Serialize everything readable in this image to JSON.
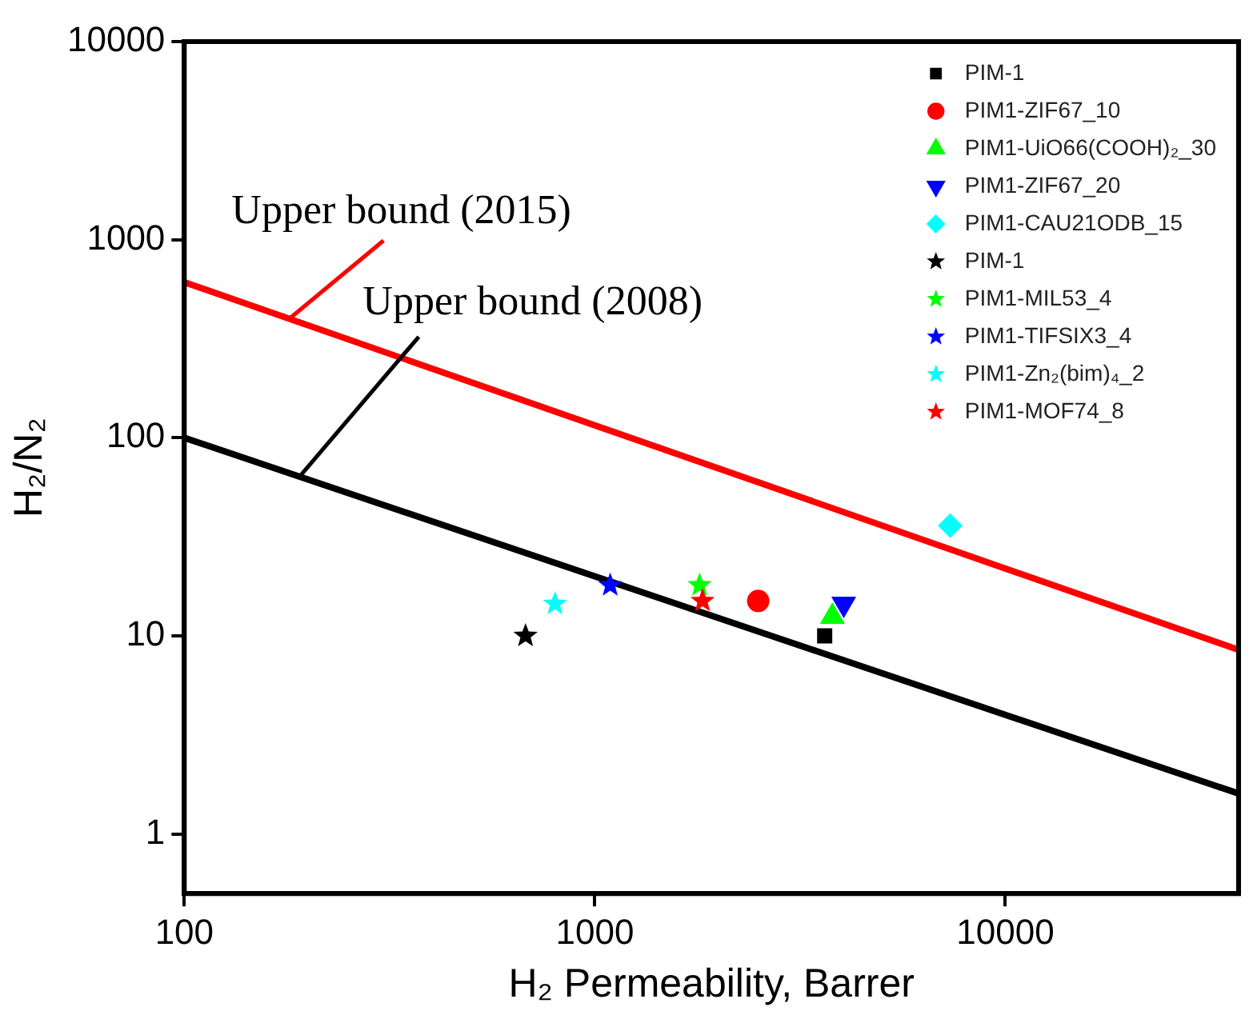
{
  "chart_data": {
    "type": "scatter",
    "xlabel": "H₂ Permeability, Barrer",
    "ylabel": "H₂/N₂",
    "log": "xy",
    "grid": false,
    "legend": "top right",
    "xlim": [
      100,
      37000
    ],
    "xticks": [
      100,
      1000,
      10000
    ],
    "ylim": [
      0.5,
      10000
    ],
    "yticks": [
      1,
      10,
      100,
      1000,
      10000
    ],
    "series": [
      {
        "type": "line",
        "color": "#ff0000",
        "x": [
          100,
          37000
        ],
        "values": [
          610,
          8.5
        ],
        "marker": "none"
      },
      {
        "type": "line",
        "color": "#000000",
        "x": [
          100,
          37000
        ],
        "values": [
          100,
          1.6
        ],
        "marker": "none"
      },
      {
        "name": "PIM-1",
        "color": "#000000",
        "marker": "square",
        "x": [
          3630
        ],
        "values": [
          10
        ]
      },
      {
        "name": "PIM1-ZIF67_10",
        "color": "#ff0000",
        "marker": "circle",
        "x": [
          2500
        ],
        "values": [
          15
        ]
      },
      {
        "name": "PIM1-UiO66(COOH)₂_30",
        "color": "#00ff00",
        "marker": "triangle",
        "x": [
          3790
        ],
        "values": [
          12.5
        ]
      },
      {
        "name": "PIM1-ZIF67_20",
        "color": "#0000ff",
        "marker": "triangle-down",
        "x": [
          4040
        ],
        "values": [
          14.5
        ]
      },
      {
        "name": "PIM1-CAU21ODB_15",
        "color": "#00ffff",
        "marker": "diamond",
        "x": [
          7340
        ],
        "values": [
          36
        ]
      },
      {
        "name": "PIM-1",
        "color": "#000000",
        "marker": "star",
        "x": [
          678
        ],
        "values": [
          10
        ]
      },
      {
        "name": "PIM1-MIL53_4",
        "color": "#00ff00",
        "marker": "star",
        "x": [
          1800
        ],
        "values": [
          18
        ]
      },
      {
        "name": "PIM1-TIFSIX3_4",
        "color": "#0000ff",
        "marker": "star",
        "x": [
          1090
        ],
        "values": [
          18
        ]
      },
      {
        "name": "PIM1-Zn₂(bim)₄_2",
        "color": "#00ffff",
        "marker": "star",
        "x": [
          800
        ],
        "values": [
          14.5
        ]
      },
      {
        "name": "PIM1-MOF74_8",
        "color": "#ff0000",
        "marker": "star",
        "x": [
          1830
        ],
        "values": [
          15
        ]
      }
    ],
    "annotations": [
      {
        "text": "Upper bound (2015)",
        "x": 180,
        "y": 398
      },
      {
        "text": "Upper bound (2008)",
        "x": 190,
        "y": 63
      }
    ]
  }
}
